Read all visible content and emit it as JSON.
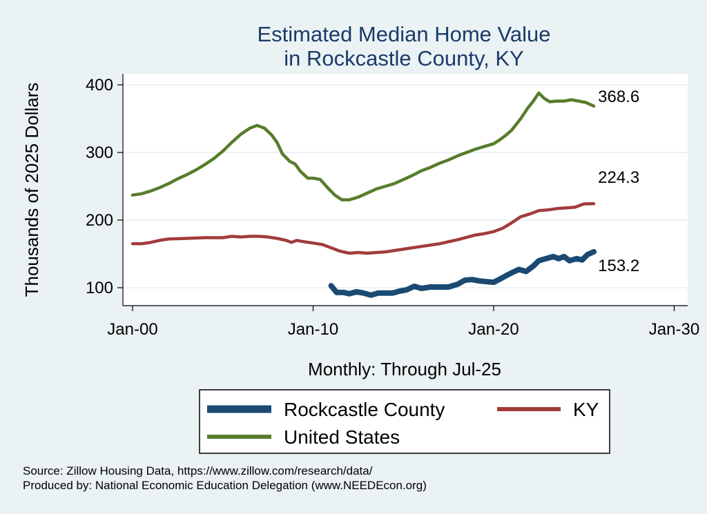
{
  "chart_data": {
    "type": "line",
    "title": [
      "Estimated Median Home Value",
      "in Rockcastle County, KY"
    ],
    "ylabel": "Thousands of 2025 Dollars",
    "xlabel": "Monthly: Through Jul-25",
    "ylim": [
      88,
      410
    ],
    "xlim": [
      2000,
      2030
    ],
    "yticks": [
      100,
      200,
      300,
      400
    ],
    "xticks": [
      {
        "year": 2000,
        "label": "Jan-00"
      },
      {
        "year": 2010,
        "label": "Jan-10"
      },
      {
        "year": 2020,
        "label": "Jan-20"
      },
      {
        "year": 2030,
        "label": "Jan-30"
      }
    ],
    "grid": true,
    "series": [
      {
        "name": "Rockcastle County",
        "color": "#1a4a72",
        "end_label": "153.2",
        "points": [
          [
            2011.0,
            103
          ],
          [
            2011.3,
            93
          ],
          [
            2011.7,
            93
          ],
          [
            2012.0,
            91
          ],
          [
            2012.4,
            94
          ],
          [
            2012.8,
            92
          ],
          [
            2013.2,
            89
          ],
          [
            2013.6,
            92
          ],
          [
            2014.0,
            92
          ],
          [
            2014.4,
            92
          ],
          [
            2014.8,
            95
          ],
          [
            2015.2,
            97
          ],
          [
            2015.6,
            102
          ],
          [
            2016.0,
            99
          ],
          [
            2016.5,
            101
          ],
          [
            2017.0,
            101
          ],
          [
            2017.5,
            101
          ],
          [
            2018.0,
            105
          ],
          [
            2018.4,
            111
          ],
          [
            2018.8,
            112
          ],
          [
            2019.2,
            110
          ],
          [
            2019.6,
            109
          ],
          [
            2020.0,
            108
          ],
          [
            2020.3,
            112
          ],
          [
            2020.7,
            118
          ],
          [
            2021.0,
            122
          ],
          [
            2021.4,
            127
          ],
          [
            2021.8,
            124
          ],
          [
            2022.2,
            132
          ],
          [
            2022.5,
            140
          ],
          [
            2022.9,
            143
          ],
          [
            2023.3,
            146
          ],
          [
            2023.6,
            143
          ],
          [
            2023.9,
            146
          ],
          [
            2024.2,
            140
          ],
          [
            2024.6,
            143
          ],
          [
            2024.9,
            141
          ],
          [
            2025.2,
            149
          ],
          [
            2025.55,
            153.2
          ]
        ]
      },
      {
        "name": "KY",
        "color": "#a23b3c",
        "end_label": "224.3",
        "points": [
          [
            2000.0,
            165
          ],
          [
            2000.5,
            165
          ],
          [
            2001.0,
            167
          ],
          [
            2001.5,
            170
          ],
          [
            2002.0,
            172
          ],
          [
            2003.0,
            173
          ],
          [
            2004.0,
            174
          ],
          [
            2005.0,
            174
          ],
          [
            2005.5,
            176
          ],
          [
            2006.0,
            175
          ],
          [
            2006.5,
            176
          ],
          [
            2007.0,
            176
          ],
          [
            2007.5,
            175
          ],
          [
            2008.0,
            173
          ],
          [
            2008.5,
            170
          ],
          [
            2008.8,
            167
          ],
          [
            2009.1,
            170
          ],
          [
            2009.5,
            168
          ],
          [
            2010.0,
            166
          ],
          [
            2010.5,
            164
          ],
          [
            2011.0,
            159
          ],
          [
            2011.5,
            154
          ],
          [
            2012.0,
            151
          ],
          [
            2012.5,
            152
          ],
          [
            2013.0,
            151
          ],
          [
            2013.5,
            152
          ],
          [
            2014.0,
            153
          ],
          [
            2014.5,
            155
          ],
          [
            2015.0,
            157
          ],
          [
            2016.0,
            161
          ],
          [
            2017.0,
            165
          ],
          [
            2018.0,
            171
          ],
          [
            2019.0,
            178
          ],
          [
            2019.5,
            180
          ],
          [
            2020.0,
            183
          ],
          [
            2020.5,
            188
          ],
          [
            2021.0,
            196
          ],
          [
            2021.5,
            205
          ],
          [
            2022.0,
            209
          ],
          [
            2022.5,
            214
          ],
          [
            2023.0,
            215
          ],
          [
            2023.5,
            217
          ],
          [
            2024.0,
            218
          ],
          [
            2024.5,
            219
          ],
          [
            2025.0,
            224
          ],
          [
            2025.55,
            224.3
          ]
        ]
      },
      {
        "name": "United States",
        "color": "#577c2b",
        "end_label": "368.6",
        "points": [
          [
            2000.0,
            237
          ],
          [
            2000.5,
            239
          ],
          [
            2001.0,
            243
          ],
          [
            2001.5,
            248
          ],
          [
            2002.0,
            254
          ],
          [
            2002.5,
            261
          ],
          [
            2003.0,
            267
          ],
          [
            2003.5,
            274
          ],
          [
            2004.0,
            282
          ],
          [
            2004.5,
            291
          ],
          [
            2005.0,
            302
          ],
          [
            2005.5,
            315
          ],
          [
            2006.0,
            327
          ],
          [
            2006.5,
            336
          ],
          [
            2006.9,
            340
          ],
          [
            2007.3,
            336
          ],
          [
            2007.7,
            326
          ],
          [
            2008.0,
            315
          ],
          [
            2008.3,
            298
          ],
          [
            2008.7,
            287
          ],
          [
            2009.0,
            283
          ],
          [
            2009.3,
            272
          ],
          [
            2009.7,
            262
          ],
          [
            2010.0,
            262
          ],
          [
            2010.4,
            260
          ],
          [
            2010.8,
            248
          ],
          [
            2011.2,
            237
          ],
          [
            2011.6,
            230
          ],
          [
            2012.0,
            230
          ],
          [
            2012.5,
            234
          ],
          [
            2013.0,
            240
          ],
          [
            2013.5,
            246
          ],
          [
            2014.0,
            250
          ],
          [
            2014.5,
            254
          ],
          [
            2015.0,
            260
          ],
          [
            2015.5,
            266
          ],
          [
            2016.0,
            273
          ],
          [
            2016.5,
            278
          ],
          [
            2017.0,
            284
          ],
          [
            2017.5,
            289
          ],
          [
            2018.0,
            295
          ],
          [
            2018.5,
            300
          ],
          [
            2019.0,
            305
          ],
          [
            2019.5,
            309
          ],
          [
            2020.0,
            313
          ],
          [
            2020.3,
            318
          ],
          [
            2020.7,
            326
          ],
          [
            2021.0,
            333
          ],
          [
            2021.5,
            350
          ],
          [
            2021.9,
            366
          ],
          [
            2022.2,
            376
          ],
          [
            2022.5,
            388
          ],
          [
            2022.8,
            380
          ],
          [
            2023.1,
            375
          ],
          [
            2023.5,
            376
          ],
          [
            2023.9,
            376
          ],
          [
            2024.3,
            378
          ],
          [
            2024.7,
            376
          ],
          [
            2025.1,
            374
          ],
          [
            2025.55,
            368.6
          ]
        ]
      }
    ],
    "legend": {
      "placement": "bottom",
      "entries": [
        "Rockcastle County",
        "KY",
        "United States"
      ]
    }
  },
  "notes": {
    "source": "Source: Zillow Housing Data, https://www.zillow.com/research/data/",
    "produced": "Produced by: National Economic Education Delegation (www.NEEDEcon.org)"
  }
}
